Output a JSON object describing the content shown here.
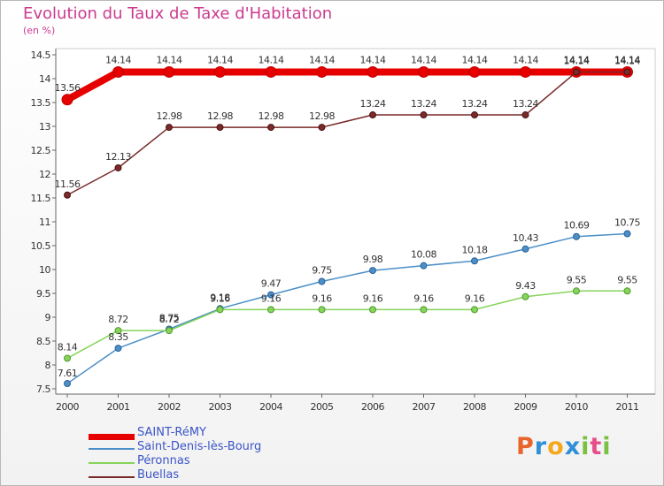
{
  "chart_data": {
    "type": "line",
    "title": "Evolution du Taux de Taxe d'Habitation",
    "subtitle": "(en %)",
    "x": [
      "2000",
      "2001",
      "2002",
      "2003",
      "2004",
      "2005",
      "2006",
      "2007",
      "2008",
      "2009",
      "2010",
      "2011"
    ],
    "ylim": [
      7.5,
      14.5
    ],
    "yticks": [
      7.5,
      8,
      8.5,
      9,
      9.5,
      10,
      10.5,
      11,
      11.5,
      12,
      12.5,
      13,
      13.5,
      14,
      14.5
    ],
    "grid": false,
    "legend_position": "bottom-left",
    "series": [
      {
        "name": "SAINT-RéMY",
        "color": "#e60000",
        "values": [
          13.56,
          14.14,
          14.14,
          14.14,
          14.14,
          14.14,
          14.14,
          14.14,
          14.14,
          14.14,
          14.14,
          14.14
        ]
      },
      {
        "name": "Saint-Denis-lès-Bourg",
        "color": "#4b8fc8",
        "values": [
          7.61,
          8.35,
          8.75,
          9.18,
          9.47,
          9.75,
          9.98,
          10.08,
          10.18,
          10.43,
          10.69,
          10.75
        ]
      },
      {
        "name": "Péronnas",
        "color": "#86d45a",
        "values": [
          8.14,
          8.72,
          8.72,
          9.16,
          9.16,
          9.16,
          9.16,
          9.16,
          9.16,
          9.43,
          9.55,
          9.55
        ]
      },
      {
        "name": "Buellas",
        "color": "#7a2a2a",
        "values": [
          11.56,
          12.13,
          12.98,
          12.98,
          12.98,
          12.98,
          13.24,
          13.24,
          13.24,
          13.24,
          14.14,
          14.14
        ]
      }
    ]
  },
  "logo": {
    "text": "Proxiti"
  }
}
